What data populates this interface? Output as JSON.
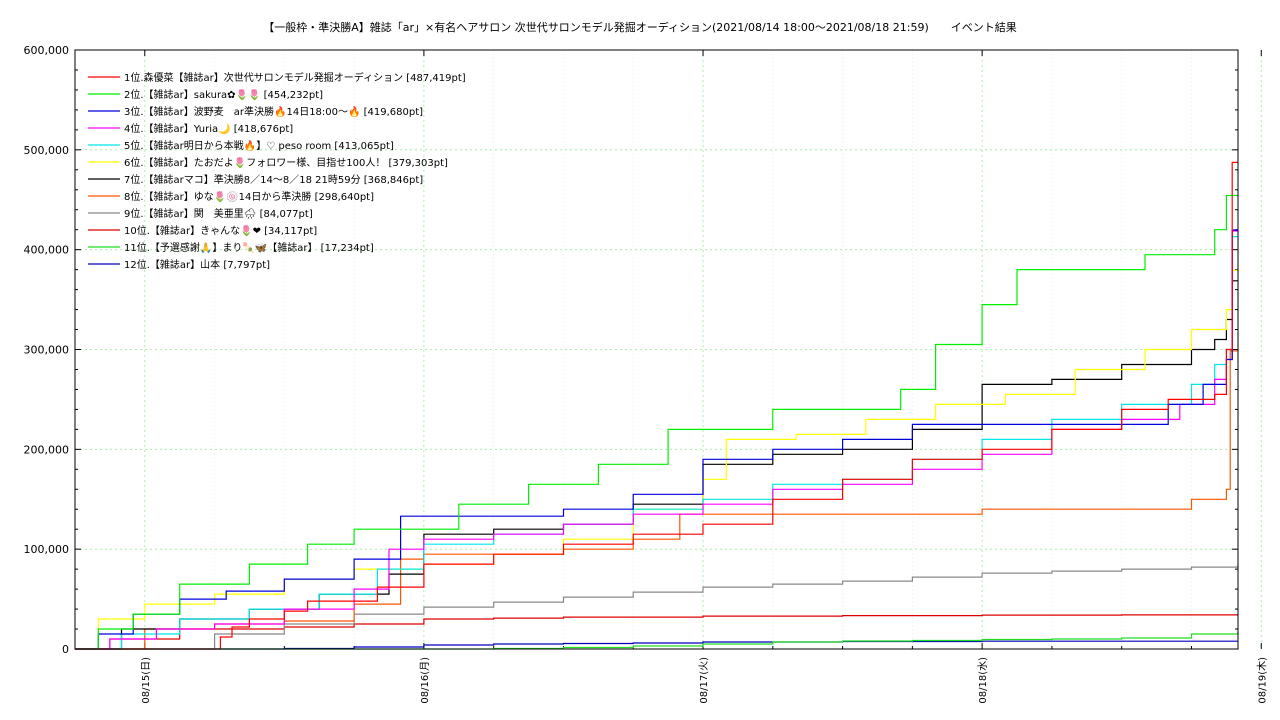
{
  "chart_data": {
    "type": "line",
    "title": "【一般枠・準決勝A】雑誌「ar」×有名ヘアサロン 次世代サロンモデル発掘オーディション(2021/08/14 18:00～2021/08/18 21:59)　　イベント結果",
    "xlabel": "",
    "ylabel": "",
    "ylim": [
      0,
      600000
    ],
    "yticks": [
      "0",
      "100,000",
      "200,000",
      "300,000",
      "400,000",
      "500,000",
      "600,000"
    ],
    "xlim": [
      "2021-08-14 18:00",
      "2021-08-18 22:00"
    ],
    "xticks": [
      "08/15(日)",
      "08/16(月)",
      "08/17(火)",
      "08/18(水)",
      "08/19(木)"
    ],
    "grid": true,
    "legend": "top-left",
    "series": [
      {
        "name": "1位.森優菜【雑誌ar】次世代サロンモデル発掘オーディション [487,419pt]",
        "color": "#ff0000",
        "x": [
          "08-14 18:00",
          "08-15 06:00",
          "08-15 06:30",
          "08-15 07:30",
          "08-15 09:00",
          "08-15 12:00",
          "08-15 14:00",
          "08-15 20:00",
          "08-16 00:00",
          "08-16 06:00",
          "08-16 12:00",
          "08-16 18:00",
          "08-17 00:00",
          "08-17 06:00",
          "08-17 12:00",
          "08-17 18:00",
          "08-18 00:00",
          "08-18 06:00",
          "08-18 12:00",
          "08-18 16:00",
          "08-18 20:00",
          "08-18 21:00",
          "08-18 21:30",
          "08-18 21:59"
        ],
        "y": [
          0,
          0,
          12000,
          22000,
          30000,
          38000,
          48000,
          62000,
          85000,
          95000,
          105000,
          115000,
          125000,
          150000,
          170000,
          190000,
          200000,
          220000,
          240000,
          250000,
          255000,
          300000,
          487419,
          487419
        ]
      },
      {
        "name": "2位.【雑誌ar】sakura✿🌷🌷 [454,232pt]",
        "color": "#00ee00",
        "x": [
          "08-14 18:00",
          "08-14 20:00",
          "08-14 23:00",
          "08-15 03:00",
          "08-15 09:00",
          "08-15 14:00",
          "08-15 18:00",
          "08-16 00:00",
          "08-16 03:00",
          "08-16 09:00",
          "08-16 15:00",
          "08-16 21:00",
          "08-17 00:00",
          "08-17 06:00",
          "08-17 12:00",
          "08-17 17:00",
          "08-17 20:00",
          "08-18 00:00",
          "08-18 03:00",
          "08-18 08:00",
          "08-18 14:00",
          "08-18 20:00",
          "08-18 21:00",
          "08-18 21:59"
        ],
        "y": [
          0,
          20000,
          35000,
          65000,
          85000,
          105000,
          120000,
          120000,
          145000,
          165000,
          185000,
          220000,
          220000,
          240000,
          240000,
          260000,
          305000,
          345000,
          380000,
          380000,
          395000,
          420000,
          454232,
          454232
        ]
      },
      {
        "name": "3位.【雑誌ar】波野麦　ar準決勝🔥14日18:00～🔥 [419,680pt]",
        "color": "#0000dd",
        "x": [
          "08-14 18:00",
          "08-14 20:00",
          "08-14 23:00",
          "08-15 03:00",
          "08-15 07:00",
          "08-15 12:00",
          "08-15 18:00",
          "08-15 22:00",
          "08-16 00:00",
          "08-16 06:00",
          "08-16 12:00",
          "08-16 18:00",
          "08-17 00:00",
          "08-17 06:00",
          "08-17 12:00",
          "08-17 18:00",
          "08-18 00:00",
          "08-18 06:00",
          "08-18 12:00",
          "08-18 16:00",
          "08-18 19:00",
          "08-18 21:00",
          "08-18 21:30",
          "08-18 21:59"
        ],
        "y": [
          0,
          15000,
          35000,
          50000,
          58000,
          70000,
          90000,
          133000,
          133000,
          133000,
          140000,
          155000,
          190000,
          200000,
          210000,
          225000,
          225000,
          225000,
          225000,
          245000,
          265000,
          290000,
          419680,
          419680
        ]
      },
      {
        "name": "4位.【雑誌ar】Yuria🌙 [418,676pt]",
        "color": "#ff00ff",
        "x": [
          "08-14 18:00",
          "08-14 21:00",
          "08-15 01:00",
          "08-15 06:00",
          "08-15 12:00",
          "08-15 18:00",
          "08-15 21:00",
          "08-16 00:00",
          "08-16 06:00",
          "08-16 12:00",
          "08-16 18:00",
          "08-17 00:00",
          "08-17 06:00",
          "08-17 12:00",
          "08-17 18:00",
          "08-18 00:00",
          "08-18 06:00",
          "08-18 12:00",
          "08-18 17:00",
          "08-18 20:00",
          "08-18 21:00",
          "08-18 21:30",
          "08-18 21:59"
        ],
        "y": [
          0,
          10000,
          20000,
          25000,
          40000,
          60000,
          100000,
          110000,
          115000,
          125000,
          135000,
          145000,
          160000,
          165000,
          180000,
          195000,
          220000,
          230000,
          245000,
          270000,
          290000,
          418676,
          418676
        ]
      },
      {
        "name": "5位.【雑誌ar明日から本戦🔥】♡ peso room [413,065pt]",
        "color": "#00e5e5",
        "x": [
          "08-14 18:00",
          "08-14 22:00",
          "08-15 03:00",
          "08-15 09:00",
          "08-15 15:00",
          "08-15 20:00",
          "08-16 00:00",
          "08-16 06:00",
          "08-16 12:00",
          "08-16 18:00",
          "08-17 00:00",
          "08-17 06:00",
          "08-17 12:00",
          "08-17 18:00",
          "08-18 00:00",
          "08-18 06:00",
          "08-18 12:00",
          "08-18 18:00",
          "08-18 20:00",
          "08-18 21:00",
          "08-18 21:30",
          "08-18 21:59"
        ],
        "y": [
          0,
          15000,
          30000,
          40000,
          55000,
          80000,
          105000,
          115000,
          125000,
          140000,
          150000,
          165000,
          170000,
          190000,
          210000,
          230000,
          245000,
          265000,
          285000,
          300000,
          413065,
          413065
        ]
      },
      {
        "name": "6位.【雑誌ar】たおだよ🌷フォロワー様、目指せ100人！ [379,303pt]",
        "color": "#ffff00",
        "x": [
          "08-14 18:00",
          "08-14 20:00",
          "08-15 00:00",
          "08-15 06:00",
          "08-15 12:00",
          "08-15 18:00",
          "08-16 00:00",
          "08-16 06:00",
          "08-16 12:00",
          "08-16 18:00",
          "08-17 00:00",
          "08-17 02:00",
          "08-17 08:00",
          "08-17 14:00",
          "08-17 20:00",
          "08-18 02:00",
          "08-18 08:00",
          "08-18 14:00",
          "08-18 18:00",
          "08-18 21:00",
          "08-18 21:30",
          "08-18 21:59"
        ],
        "y": [
          0,
          30000,
          45000,
          55000,
          70000,
          80000,
          85000,
          95000,
          110000,
          140000,
          170000,
          210000,
          215000,
          230000,
          245000,
          255000,
          280000,
          300000,
          320000,
          340000,
          379303,
          379303
        ]
      },
      {
        "name": "7位.【雑誌arマコ】準決勝8／14～8／18 21時59分 [368,846pt]",
        "color": "#000000",
        "x": [
          "08-14 18:00",
          "08-14 22:00",
          "08-15 03:00",
          "08-15 09:00",
          "08-15 15:00",
          "08-15 21:00",
          "08-16 00:00",
          "08-16 06:00",
          "08-16 12:00",
          "08-16 18:00",
          "08-17 00:00",
          "08-17 06:00",
          "08-17 12:00",
          "08-17 18:00",
          "08-18 00:00",
          "08-18 06:00",
          "08-18 12:00",
          "08-18 18:00",
          "08-18 20:00",
          "08-18 21:00",
          "08-18 21:30",
          "08-18 21:59"
        ],
        "y": [
          0,
          20000,
          30000,
          40000,
          55000,
          75000,
          115000,
          120000,
          125000,
          145000,
          185000,
          195000,
          200000,
          220000,
          265000,
          270000,
          285000,
          300000,
          310000,
          330000,
          368846,
          368846
        ]
      },
      {
        "name": "8位.【雑誌ar】ゆな🌷🍥14日から準決勝 [298,640pt]",
        "color": "#ff5500",
        "x": [
          "08-14 18:00",
          "08-15 00:00",
          "08-15 06:00",
          "08-15 12:00",
          "08-15 18:00",
          "08-15 22:00",
          "08-16 00:00",
          "08-16 06:00",
          "08-16 12:00",
          "08-16 18:00",
          "08-16 22:00",
          "08-17 00:00",
          "08-17 06:00",
          "08-17 12:00",
          "08-17 18:00",
          "08-18 00:00",
          "08-18 06:00",
          "08-18 12:00",
          "08-18 18:00",
          "08-18 21:00",
          "08-18 21:20",
          "08-18 21:59"
        ],
        "y": [
          0,
          20000,
          25000,
          28000,
          45000,
          90000,
          95000,
          95000,
          100000,
          110000,
          135000,
          135000,
          135000,
          135000,
          135000,
          140000,
          140000,
          140000,
          150000,
          160000,
          298640,
          298640
        ]
      },
      {
        "name": "9位.【雑誌ar】関　美亜里🌧 [84,077pt]",
        "color": "#888888",
        "x": [
          "08-14 18:00",
          "08-15 06:00",
          "08-15 12:00",
          "08-15 18:00",
          "08-16 00:00",
          "08-16 06:00",
          "08-16 12:00",
          "08-16 18:00",
          "08-17 00:00",
          "08-17 06:00",
          "08-17 12:00",
          "08-17 18:00",
          "08-18 00:00",
          "08-18 06:00",
          "08-18 12:00",
          "08-18 18:00",
          "08-18 21:59"
        ],
        "y": [
          0,
          15000,
          25000,
          35000,
          42000,
          47000,
          52000,
          57000,
          62000,
          65000,
          68000,
          72000,
          76000,
          78000,
          80000,
          82000,
          84077
        ]
      },
      {
        "name": "10位.【雑誌ar】きゃんな🌷❤ [34,117pt]",
        "color": "#dd0000",
        "x": [
          "08-14 18:00",
          "08-14 21:00",
          "08-15 03:00",
          "08-15 12:00",
          "08-15 18:00",
          "08-16 00:00",
          "08-16 06:00",
          "08-16 12:00",
          "08-16 18:00",
          "08-17 00:00",
          "08-17 12:00",
          "08-18 00:00",
          "08-18 12:00",
          "08-18 21:59"
        ],
        "y": [
          0,
          10000,
          20000,
          22000,
          25000,
          30000,
          31000,
          32000,
          32000,
          33000,
          33500,
          34000,
          34117,
          34117
        ]
      },
      {
        "name": "11位.【予選感謝🙏】まり🍡🦋【雑誌ar】 [17,234pt]",
        "color": "#22dd22",
        "x": [
          "08-14 18:00",
          "08-15 06:00",
          "08-15 18:00",
          "08-16 06:00",
          "08-16 12:00",
          "08-16 18:00",
          "08-17 00:00",
          "08-17 06:00",
          "08-17 12:00",
          "08-17 18:00",
          "08-18 00:00",
          "08-18 06:00",
          "08-18 12:00",
          "08-18 18:00",
          "08-18 21:59"
        ],
        "y": [
          0,
          0,
          0,
          500,
          1500,
          3000,
          5000,
          7000,
          8000,
          8500,
          9500,
          10000,
          11000,
          15000,
          17234
        ]
      },
      {
        "name": "12位.【雑誌ar】山本 [7,797pt]",
        "color": "#0000bb",
        "x": [
          "08-14 18:00",
          "08-15 06:00",
          "08-15 12:00",
          "08-15 18:00",
          "08-16 00:00",
          "08-16 06:00",
          "08-16 12:00",
          "08-16 18:00",
          "08-17 00:00",
          "08-17 12:00",
          "08-18 00:00",
          "08-18 21:59"
        ],
        "y": [
          0,
          0,
          500,
          2000,
          4000,
          5000,
          5500,
          6000,
          7000,
          7500,
          7797,
          7797
        ]
      }
    ]
  }
}
